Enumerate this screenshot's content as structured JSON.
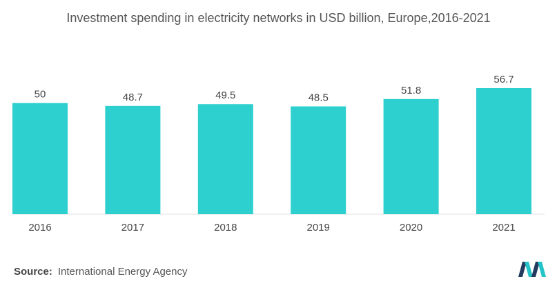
{
  "title": "Investment spending in electricity networks in USD billion, Europe,2016-2021",
  "source": {
    "label": "Source:",
    "text": "International Energy Agency"
  },
  "colors": {
    "bar": "#2ecfcf",
    "text": "#444444",
    "axis": "#e0e0e0",
    "logo_dark": "#243a5e",
    "logo_teal": "#25c2c8"
  },
  "chart_data": {
    "type": "bar",
    "title": "Investment spending in electricity networks in USD billion, Europe,2016-2021",
    "categories": [
      "2016",
      "2017",
      "2018",
      "2019",
      "2020",
      "2021"
    ],
    "values": [
      50,
      48.7,
      49.5,
      48.5,
      51.8,
      56.7
    ],
    "value_labels": [
      "50",
      "48.7",
      "49.5",
      "48.5",
      "51.8",
      "56.7"
    ],
    "xlabel": "",
    "ylabel": "",
    "ylim": [
      0,
      56.7
    ],
    "grid": false,
    "legend": "none"
  }
}
